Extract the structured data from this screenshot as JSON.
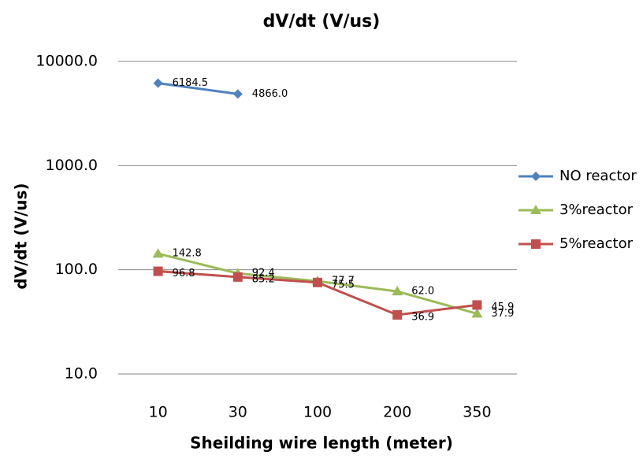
{
  "chart_data": {
    "type": "line",
    "title": "dV/dt (V/us)",
    "x_label": "Sheilding wire length (meter)",
    "y_label": "dV/dt (V/us)",
    "categories": [
      "10",
      "30",
      "100",
      "200",
      "350"
    ],
    "log_y": true,
    "ylim": [
      10,
      10000
    ],
    "yticks": [
      {
        "value": 10,
        "label": "10.0"
      },
      {
        "value": 100,
        "label": "100.0"
      },
      {
        "value": 1000,
        "label": "1000.0"
      },
      {
        "value": 10000,
        "label": "10000.0"
      }
    ],
    "grid": true,
    "legend": "right",
    "series": [
      {
        "name": "NO reactor",
        "color": "#4f81bd",
        "marker": "diamond",
        "values": [
          6184.5,
          4866.0,
          null,
          null,
          null
        ],
        "value_labels": [
          "6184.5",
          "4866.0",
          null,
          null,
          null
        ]
      },
      {
        "name": "3%reactor",
        "color": "#9bbb59",
        "marker": "triangle",
        "values": [
          142.8,
          92.4,
          77.7,
          62.0,
          37.9
        ],
        "value_labels": [
          "142.8",
          "92.4",
          "77.7",
          "62.0",
          "37.9"
        ]
      },
      {
        "name": "5%reactor",
        "color": "#c0504d",
        "marker": "square",
        "values": [
          96.8,
          85.2,
          75.5,
          36.9,
          45.9
        ],
        "value_labels": [
          "96.8",
          "85.2",
          "75.5",
          "36.9",
          "45.9"
        ]
      }
    ]
  }
}
